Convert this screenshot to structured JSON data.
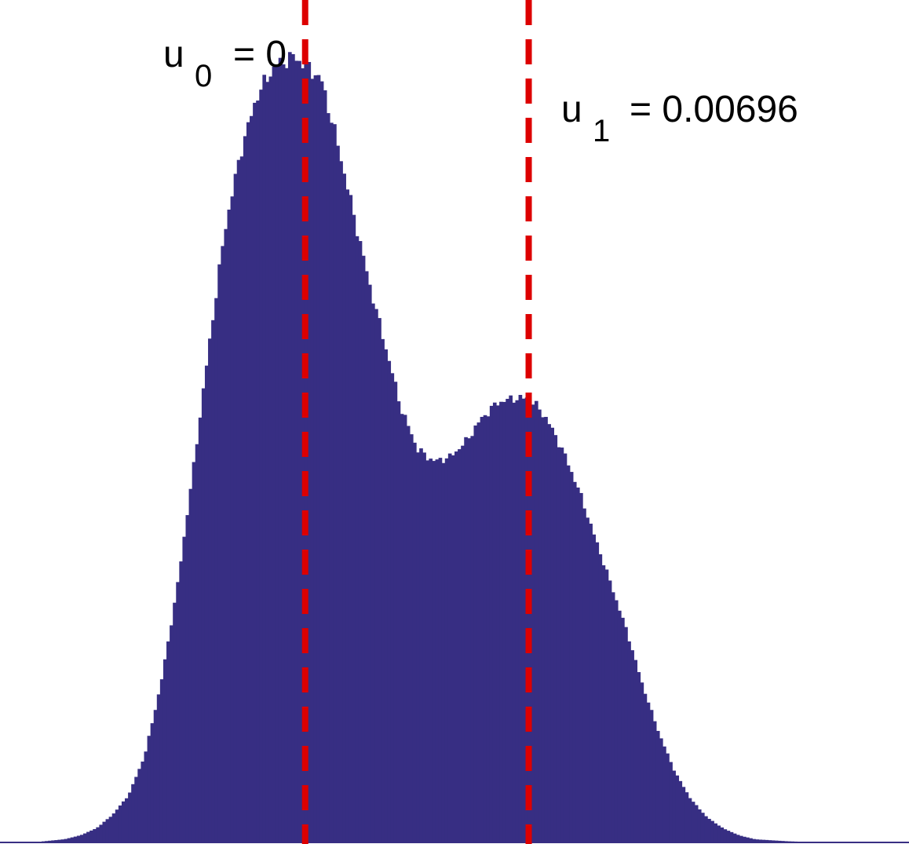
{
  "chart_data": {
    "type": "bar",
    "description_free": true,
    "x_min": -0.0095,
    "x_max": 0.0188,
    "bin_count": 284,
    "histogram_profile": [
      [
        -0.0095,
        0.0
      ],
      [
        -0.0085,
        0.0
      ],
      [
        -0.0075,
        0.004
      ],
      [
        -0.007,
        0.009
      ],
      [
        -0.0065,
        0.018
      ],
      [
        -0.006,
        0.035
      ],
      [
        -0.0055,
        0.06
      ],
      [
        -0.005,
        0.11
      ],
      [
        -0.0045,
        0.2
      ],
      [
        -0.004,
        0.32
      ],
      [
        -0.0035,
        0.47
      ],
      [
        -0.003,
        0.63
      ],
      [
        -0.0025,
        0.78
      ],
      [
        -0.002,
        0.88
      ],
      [
        -0.0015,
        0.95
      ],
      [
        -0.001,
        0.985
      ],
      [
        -0.0004,
        1.0
      ],
      [
        0.0,
        0.99
      ],
      [
        0.0005,
        0.97
      ],
      [
        0.001,
        0.89
      ],
      [
        0.0015,
        0.8
      ],
      [
        0.002,
        0.71
      ],
      [
        0.0025,
        0.63
      ],
      [
        0.003,
        0.55
      ],
      [
        0.0035,
        0.5
      ],
      [
        0.004,
        0.485
      ],
      [
        0.0045,
        0.49
      ],
      [
        0.005,
        0.51
      ],
      [
        0.0055,
        0.54
      ],
      [
        0.006,
        0.56
      ],
      [
        0.0065,
        0.565
      ],
      [
        0.007,
        0.565
      ],
      [
        0.0075,
        0.54
      ],
      [
        0.008,
        0.5
      ],
      [
        0.0085,
        0.45
      ],
      [
        0.009,
        0.39
      ],
      [
        0.0095,
        0.33
      ],
      [
        0.01,
        0.27
      ],
      [
        0.0105,
        0.2
      ],
      [
        0.011,
        0.14
      ],
      [
        0.0115,
        0.09
      ],
      [
        0.012,
        0.055
      ],
      [
        0.0125,
        0.032
      ],
      [
        0.013,
        0.018
      ],
      [
        0.0135,
        0.009
      ],
      [
        0.014,
        0.004
      ],
      [
        0.015,
        0.0015
      ],
      [
        0.016,
        0.0
      ],
      [
        0.0188,
        0.0
      ]
    ],
    "reference_lines": [
      {
        "x": 0,
        "label": "u",
        "subscript": "0",
        "value_text": "= 0",
        "color": "#dd0000"
      },
      {
        "x": 0.00696,
        "label": "u",
        "subscript": "1",
        "value_text": "= 0.00696",
        "color": "#dd0000"
      }
    ],
    "bar_color": "#372e83",
    "axes_visible": false,
    "grid": false
  }
}
